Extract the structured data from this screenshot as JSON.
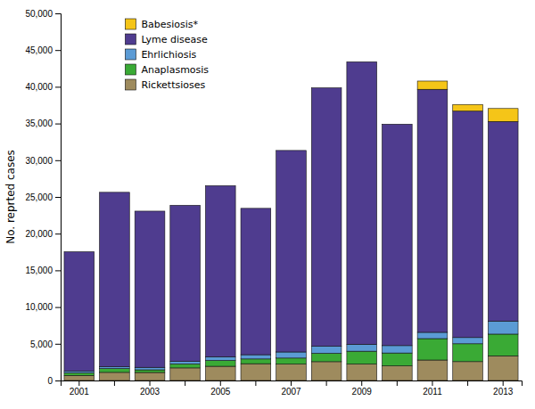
{
  "chart_data": {
    "type": "bar",
    "stacked": true,
    "ylabel": "No. reprted cases",
    "categories": [
      "2001",
      null,
      "2003",
      null,
      "2005",
      null,
      "2007",
      null,
      "2009",
      null,
      "2011",
      null,
      "2013"
    ],
    "series": [
      {
        "name": "Rickettsioses",
        "color": "#9e8b5e",
        "values": [
          695,
          1104,
          1091,
          1713,
          1936,
          2288,
          2221,
          2563,
          2227,
          1985,
          2788,
          2572,
          3359
        ]
      },
      {
        "name": "Anaplasmosis",
        "color": "#3aaa35",
        "values": [
          348,
          511,
          362,
          537,
          786,
          646,
          834,
          1137,
          1761,
          1761,
          2916,
          2429,
          2957
        ]
      },
      {
        "name": "Ehrlichiosis",
        "color": "#5b9bd5",
        "values": [
          216,
          250,
          338,
          337,
          506,
          578,
          828,
          961,
          944,
          1006,
          854,
          851,
          1761
        ]
      },
      {
        "name": "Lyme disease",
        "color": "#4f3c8f",
        "values": [
          16273,
          23763,
          21273,
          21273,
          23305,
          19931,
          27444,
          35198,
          38468,
          30158,
          33097,
          30831,
          27203
        ]
      },
      {
        "name": "Babesiosis*",
        "color": "#f5c518",
        "values": [
          0,
          0,
          0,
          0,
          0,
          0,
          0,
          0,
          0,
          0,
          1124,
          908,
          1762
        ]
      }
    ],
    "ylim": [
      0,
      50000
    ],
    "yticks": [
      0,
      {
        "value": 5000,
        "label": "5,000"
      },
      {
        "value": 10000,
        "label": "10,000"
      },
      {
        "value": 15000,
        "label": "15,000"
      },
      {
        "value": 20000,
        "label": "20,000"
      },
      {
        "value": 25000,
        "label": "25,000"
      },
      {
        "value": 30000,
        "label": "30,000"
      },
      {
        "value": 35000,
        "label": "35,000"
      },
      {
        "value": 40000,
        "label": "40,000"
      },
      {
        "value": 45000,
        "label": "45,000"
      },
      {
        "value": 50000,
        "label": "50,000"
      }
    ],
    "grid": false,
    "legend": "top-left"
  }
}
